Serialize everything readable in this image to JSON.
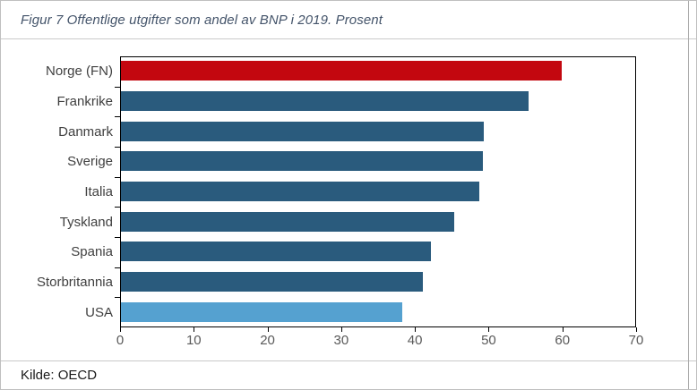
{
  "title": "Figur 7 Offentlige utgifter som andel av BNP i 2019. Prosent",
  "source": "Kilde: OECD",
  "colors": {
    "title_text": "#44546A",
    "category_label": "#404040",
    "axis_tick_label": "#595959",
    "highlight_bar_red": "#C3070F",
    "default_bar_teal": "#2A5B7D",
    "usa_bar_lightblue": "#55A1D0",
    "plot_border": "#000000",
    "frame_border": "#BFBFBF"
  },
  "chart_data": {
    "type": "bar",
    "orientation": "horizontal",
    "title": "Figur 7 Offentlige utgifter som andel av BNP i 2019. Prosent",
    "xlabel": "",
    "ylabel": "",
    "categories": [
      "Norge (FN)",
      "Frankrike",
      "Danmark",
      "Sverige",
      "Italia",
      "Tyskland",
      "Spania",
      "Storbritannia",
      "USA"
    ],
    "values": [
      59.8,
      55.3,
      49.2,
      49.1,
      48.6,
      45.2,
      42.0,
      41.0,
      38.1
    ],
    "bar_colors": [
      "#C3070F",
      "#2A5B7D",
      "#2A5B7D",
      "#2A5B7D",
      "#2A5B7D",
      "#2A5B7D",
      "#2A5B7D",
      "#2A5B7D",
      "#55A1D0"
    ],
    "xlim": [
      0,
      70
    ],
    "xticks": [
      0,
      10,
      20,
      30,
      40,
      50,
      60,
      70
    ],
    "grid": false,
    "legend": false,
    "source_note": "Kilde: OECD"
  }
}
